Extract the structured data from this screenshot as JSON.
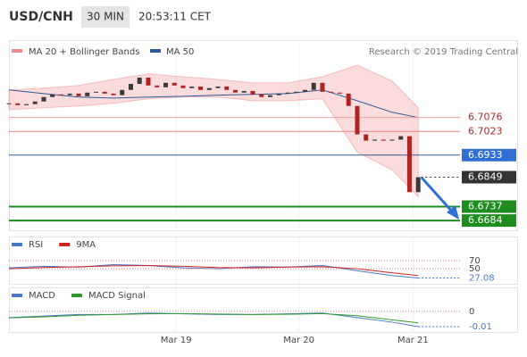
{
  "chart_data": {
    "type": "candlestick",
    "symbol": "USD/CNH",
    "interval": "30 MIN",
    "time": "20:53:11 CET",
    "credit": "Research © 2019 Trading Central",
    "xlim": [
      0,
      51.8
    ],
    "xticks": [
      {
        "value": 19.2,
        "label": "Mar 19"
      },
      {
        "value": 33.3,
        "label": "Mar 20"
      },
      {
        "value": 46.4,
        "label": "Mar 21"
      }
    ],
    "ylim": [
      6.6647,
      6.7367
    ],
    "up_color": "#3a3a3a",
    "down_color": "#b22222",
    "close": [
      6.713,
      6.7123,
      6.7127,
      6.7137,
      6.7154,
      6.7164,
      6.7161,
      6.7167,
      6.7157,
      6.7171,
      6.7174,
      6.7167,
      6.7161,
      6.7181,
      6.7204,
      6.7228,
      6.7198,
      6.7191,
      6.7208,
      6.7198,
      6.7188,
      6.7194,
      6.7181,
      6.7188,
      6.7194,
      6.7181,
      6.7171,
      6.7177,
      6.7164,
      6.7154,
      6.7161,
      6.7167,
      6.7171,
      6.7174,
      6.7181,
      6.7208,
      6.7174,
      6.7171,
      6.7167,
      6.712,
      6.7012,
      6.6988,
      6.6992,
      6.6988,
      6.6992,
      6.7005,
      6.6792,
      6.6849
    ],
    "indicator_x": [
      0,
      4,
      8,
      12,
      16,
      20,
      24,
      28,
      32,
      36,
      40,
      44,
      47
    ],
    "bands": {
      "name": "MA 20 + Bollinger Bands",
      "color": "#f08a8a",
      "upper": [
        6.7181,
        6.7188,
        6.7198,
        6.7221,
        6.7242,
        6.7231,
        6.7221,
        6.7208,
        6.7208,
        6.7231,
        6.7275,
        6.7215,
        6.7113
      ],
      "lower": [
        6.7106,
        6.7113,
        6.712,
        6.713,
        6.7147,
        6.7154,
        6.7154,
        6.714,
        6.714,
        6.7147,
        6.6944,
        6.6877,
        6.6775
      ]
    },
    "ma50": {
      "name": "MA 50",
      "color": "#2d5b9a",
      "values": [
        6.7181,
        6.7167,
        6.7154,
        6.715,
        6.7154,
        6.7157,
        6.7161,
        6.7164,
        6.7167,
        6.7181,
        6.714,
        6.7096,
        6.7076
      ]
    },
    "levels": [
      {
        "value": 6.7076,
        "color": "#f2a0a0",
        "label_bg": "#ffffff",
        "label_color": "#a52a2a",
        "width": 1
      },
      {
        "value": 6.7023,
        "color": "#f08080",
        "label_bg": "#ffffff",
        "label_color": "#a52a2a",
        "width": 1
      },
      {
        "value": 6.6933,
        "color": "#2d5b9a",
        "label_bg": "#2f6fd6",
        "label_color": "#ffffff",
        "width": 1
      },
      {
        "value": 6.6737,
        "color": "#1e8c1e",
        "label_bg": "#1e8c1e",
        "label_color": "#ffffff",
        "width": 2
      },
      {
        "value": 6.6684,
        "color": "#1e8c1e",
        "label_bg": "#1e8c1e",
        "label_color": "#ffffff",
        "width": 2
      }
    ],
    "last_color": "#333333",
    "rsi": {
      "ylim": [
        17,
        90
      ],
      "yticks": [
        50,
        70
      ],
      "series": [
        {
          "name": "RSI",
          "color": "#4a78c8",
          "values": [
            52,
            56,
            54,
            60,
            58,
            52,
            50,
            55,
            54,
            58,
            45,
            33,
            27.08
          ]
        },
        {
          "name": "9MA",
          "color": "#cc2222",
          "values": [
            50,
            53,
            55,
            57,
            58,
            56,
            53,
            52,
            54,
            55,
            50,
            40,
            33
          ]
        }
      ]
    },
    "macd": {
      "ylim": [
        -0.0135,
        0.0053
      ],
      "yticks": [
        0
      ],
      "series": [
        {
          "name": "MACD",
          "color": "#4a78c8",
          "values": [
            -0.004,
            -0.003,
            -0.002,
            -0.002,
            -0.001,
            -0.0015,
            -0.002,
            -0.002,
            -0.0015,
            -0.001,
            -0.004,
            -0.007,
            -0.01
          ]
        },
        {
          "name": "MACD Signal",
          "color": "#2e9a2e",
          "values": [
            -0.0042,
            -0.0035,
            -0.0025,
            -0.002,
            -0.0015,
            -0.0014,
            -0.0017,
            -0.002,
            -0.0018,
            -0.0014,
            -0.0028,
            -0.0055,
            -0.0075
          ]
        }
      ]
    }
  }
}
